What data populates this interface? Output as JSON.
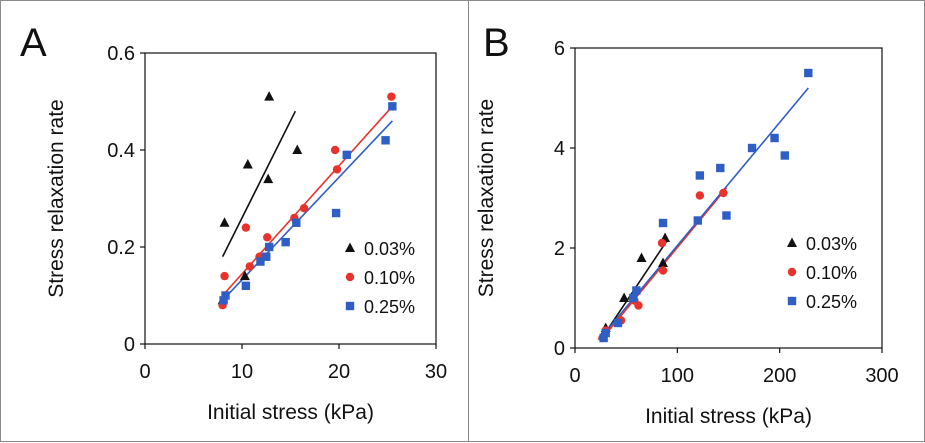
{
  "chart_data": [
    {
      "panel": "A",
      "type": "scatter",
      "xlabel": "Initial stress (kPa)",
      "ylabel": "Stress relaxation rate",
      "xlim": [
        0,
        30
      ],
      "ylim": [
        0,
        0.6
      ],
      "xticks": [
        "0",
        "10",
        "20",
        "30"
      ],
      "yticks": [
        "0",
        "0.2",
        "0.4",
        "0.6"
      ],
      "grid": false,
      "legend_position": "bottom-right",
      "series": [
        {
          "name": "0.03%",
          "marker": "triangle",
          "color": "#111111",
          "points": [
            [
              8.0,
              0.09
            ],
            [
              8.2,
              0.25
            ],
            [
              10.3,
              0.14
            ],
            [
              10.6,
              0.37
            ],
            [
              12.7,
              0.34
            ],
            [
              12.8,
              0.51
            ],
            [
              15.7,
              0.4
            ]
          ],
          "fit": [
            [
              8.0,
              0.18
            ],
            [
              15.5,
              0.48
            ]
          ]
        },
        {
          "name": "0.10%",
          "marker": "circle",
          "color": "#e8322b",
          "points": [
            [
              8.0,
              0.08
            ],
            [
              8.2,
              0.14
            ],
            [
              10.4,
              0.24
            ],
            [
              10.8,
              0.16
            ],
            [
              11.8,
              0.18
            ],
            [
              12.6,
              0.22
            ],
            [
              15.4,
              0.26
            ],
            [
              16.4,
              0.28
            ],
            [
              19.6,
              0.4
            ],
            [
              19.8,
              0.36
            ],
            [
              25.4,
              0.51
            ]
          ],
          "fit": [
            [
              8.0,
              0.1
            ],
            [
              25.5,
              0.49
            ]
          ]
        },
        {
          "name": "0.25%",
          "marker": "square",
          "color": "#2f5fc4",
          "points": [
            [
              8.1,
              0.09
            ],
            [
              8.3,
              0.1
            ],
            [
              10.4,
              0.12
            ],
            [
              11.9,
              0.17
            ],
            [
              12.5,
              0.18
            ],
            [
              12.8,
              0.2
            ],
            [
              14.5,
              0.21
            ],
            [
              15.6,
              0.25
            ],
            [
              19.7,
              0.27
            ],
            [
              20.8,
              0.39
            ],
            [
              24.8,
              0.42
            ],
            [
              25.5,
              0.49
            ]
          ],
          "fit": [
            [
              8.0,
              0.09
            ],
            [
              25.5,
              0.46
            ]
          ]
        }
      ]
    },
    {
      "panel": "B",
      "type": "scatter",
      "xlabel": "Initial stress (kPa)",
      "ylabel": "Stress relaxation rate",
      "xlim": [
        0,
        300
      ],
      "ylim": [
        0,
        6
      ],
      "xticks": [
        "0",
        "100",
        "200",
        "300"
      ],
      "yticks": [
        "0",
        "2",
        "4",
        "6"
      ],
      "grid": false,
      "legend_position": "bottom-right",
      "series": [
        {
          "name": "0.03%",
          "marker": "triangle",
          "color": "#111111",
          "points": [
            [
              27,
              0.25
            ],
            [
              30,
              0.4
            ],
            [
              48,
              1.0
            ],
            [
              65,
              1.8
            ],
            [
              86,
              1.7
            ],
            [
              88,
              2.2
            ]
          ],
          "fit": [
            [
              27,
              0.22
            ],
            [
              90,
              2.15
            ]
          ]
        },
        {
          "name": "0.10%",
          "marker": "circle",
          "color": "#e8322b",
          "points": [
            [
              27,
              0.2
            ],
            [
              30,
              0.35
            ],
            [
              45,
              0.55
            ],
            [
              58,
              0.95
            ],
            [
              62,
              0.85
            ],
            [
              85,
              2.1
            ],
            [
              86,
              1.55
            ],
            [
              122,
              3.05
            ],
            [
              145,
              3.1
            ]
          ],
          "fit": [
            [
              27,
              0.2
            ],
            [
              148,
              3.2
            ]
          ]
        },
        {
          "name": "0.25%",
          "marker": "square",
          "color": "#2f5fc4",
          "points": [
            [
              28,
              0.2
            ],
            [
              30,
              0.3
            ],
            [
              42,
              0.5
            ],
            [
              57,
              1.0
            ],
            [
              60,
              1.15
            ],
            [
              86,
              2.5
            ],
            [
              120,
              2.55
            ],
            [
              122,
              3.45
            ],
            [
              142,
              3.6
            ],
            [
              148,
              2.65
            ],
            [
              173,
              4.0
            ],
            [
              195,
              4.2
            ],
            [
              205,
              3.85
            ],
            [
              228,
              5.5
            ]
          ],
          "fit": [
            [
              27,
              0.25
            ],
            [
              228,
              5.2
            ]
          ]
        }
      ]
    }
  ]
}
